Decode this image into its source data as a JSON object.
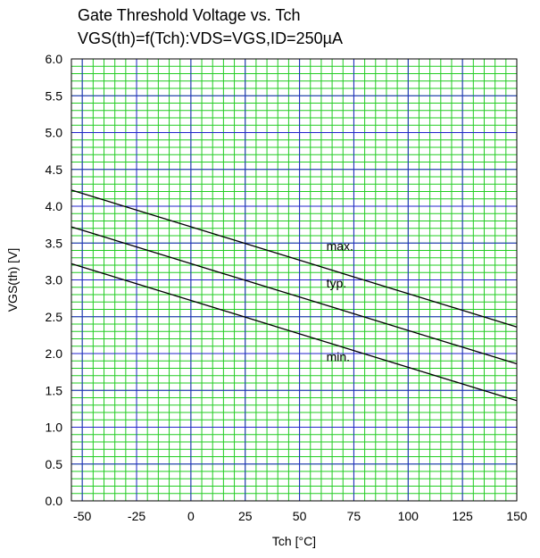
{
  "chart_data": {
    "type": "line",
    "title": "Gate Threshold Voltage vs. Tch",
    "subtitle": "VGS(th)=f(Tch):VDS=VGS,ID=250µA",
    "xlabel": "Tch [°C]",
    "ylabel": "VGS(th) [V]",
    "xlim": [
      -55,
      150
    ],
    "ylim": [
      0,
      6
    ],
    "x_ticks": [
      -50,
      -25,
      0,
      25,
      50,
      75,
      100,
      125,
      150
    ],
    "y_ticks": [
      0.0,
      0.5,
      1.0,
      1.5,
      2.0,
      2.5,
      3.0,
      3.5,
      4.0,
      4.5,
      5.0,
      5.5,
      6.0
    ],
    "x_tick_labels": [
      "-50",
      "-25",
      "0",
      "25",
      "50",
      "75",
      "100",
      "125",
      "150"
    ],
    "y_tick_labels": [
      "0.0",
      "0.5",
      "1.0",
      "1.5",
      "2.0",
      "2.5",
      "3.0",
      "3.5",
      "4.0",
      "4.5",
      "5.0",
      "5.5",
      "6.0"
    ],
    "grid": true,
    "minor_grid": true,
    "major_grid_color": "#2222cc",
    "minor_grid_color": "#22cc22",
    "series": [
      {
        "name": "max.",
        "x": [
          -55,
          150
        ],
        "y": [
          4.22,
          2.36
        ]
      },
      {
        "name": "typ.",
        "x": [
          -55,
          150
        ],
        "y": [
          3.72,
          1.86
        ]
      },
      {
        "name": "min.",
        "x": [
          -55,
          150
        ],
        "y": [
          3.22,
          1.36
        ]
      }
    ],
    "annotations": [
      {
        "text": "max.",
        "x": 50,
        "y": 3.4
      },
      {
        "text": "typ.",
        "x": 50,
        "y": 2.9
      },
      {
        "text": "min.",
        "x": 50,
        "y": 1.9
      }
    ]
  }
}
